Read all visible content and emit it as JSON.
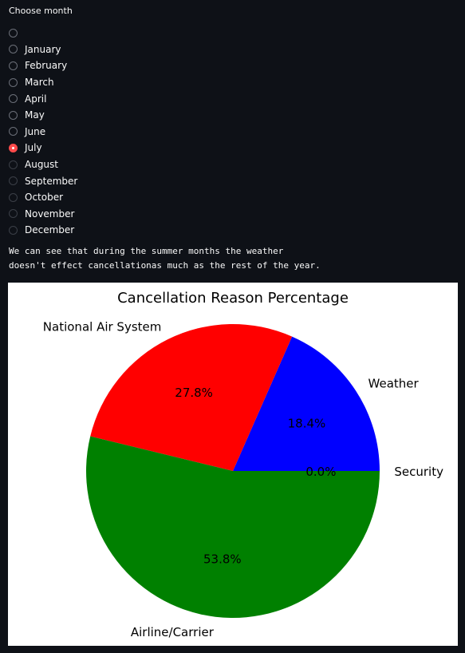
{
  "radio": {
    "label": "Choose month",
    "options": [
      "",
      "January",
      "February",
      "March",
      "April",
      "May",
      "June",
      "July",
      "August",
      "September",
      "October",
      "November",
      "December"
    ],
    "selected_index": 7
  },
  "note": {
    "line1": "We can see that during the summer months the weather",
    "line2": "doesn't effect cancellationas much as the rest of the year."
  },
  "colors": {
    "accent": "#ff4b4b",
    "background": "#0e1117"
  },
  "chart_data": {
    "type": "pie",
    "title": "Cancellation Reason Percentage",
    "labels": [
      "Weather",
      "National Air System",
      "Airline/Carrier",
      "Security"
    ],
    "values": [
      18.4,
      27.8,
      53.8,
      0.0
    ],
    "pct_labels": [
      "18.4%",
      "27.8%",
      "53.8%",
      "0.0%"
    ],
    "colors": [
      "#0000ff",
      "#ff0000",
      "#008000",
      "#000000"
    ],
    "start_angle_deg": 0,
    "direction": "counterclockwise"
  }
}
